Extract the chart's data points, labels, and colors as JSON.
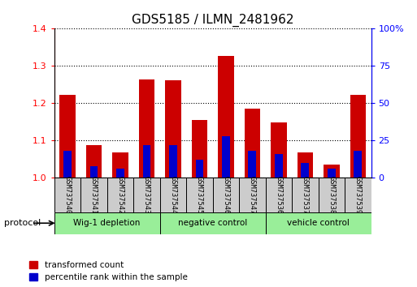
{
  "title": "GDS5185 / ILMN_2481962",
  "samples": [
    "GSM737540",
    "GSM737541",
    "GSM737542",
    "GSM737543",
    "GSM737544",
    "GSM737545",
    "GSM737546",
    "GSM737547",
    "GSM737536",
    "GSM737537",
    "GSM737538",
    "GSM737539"
  ],
  "transformed_count": [
    1.222,
    1.088,
    1.068,
    1.265,
    1.262,
    1.155,
    1.328,
    1.185,
    1.148,
    1.068,
    1.035,
    1.222
  ],
  "percentile_rank": [
    18,
    8,
    6,
    22,
    22,
    12,
    28,
    18,
    16,
    10,
    6,
    18
  ],
  "groups": [
    {
      "label": "Wig-1 depletion",
      "start": 0,
      "end": 4
    },
    {
      "label": "negative control",
      "start": 4,
      "end": 8
    },
    {
      "label": "vehicle control",
      "start": 8,
      "end": 12
    }
  ],
  "bar_color_red": "#cc0000",
  "bar_color_blue": "#0000cc",
  "group_bg_color": "#99ee99",
  "sample_bg_color": "#cccccc",
  "ylim_left": [
    1.0,
    1.4
  ],
  "ylim_right": [
    0,
    100
  ],
  "yticks_left": [
    1.0,
    1.1,
    1.2,
    1.3,
    1.4
  ],
  "yticks_right": [
    0,
    25,
    50,
    75,
    100
  ],
  "yticklabels_right": [
    "0",
    "25",
    "50",
    "75",
    "100%"
  ],
  "bar_width": 0.6,
  "protocol_label": "protocol",
  "legend_red": "transformed count",
  "legend_blue": "percentile rank within the sample",
  "title_fontsize": 11,
  "axis_fontsize": 9,
  "tick_fontsize": 8
}
